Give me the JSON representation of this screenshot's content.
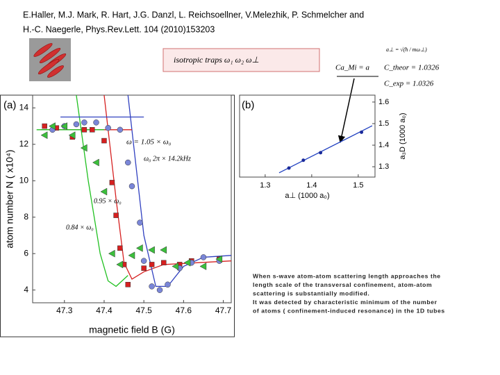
{
  "header": {
    "lines": [
      "E.Haller, M.J. Mark, R. Hart, J.G. Danzl, L. Reichsoellner, V.Melezhik, P. Schmelcher and",
      "H.-C. Naegerle, Phys.Rev.Lett. 104 (2010)153203"
    ]
  },
  "formulas": {
    "traps": "isotropic traps ω₁    ω₂    ω⊥",
    "a_perp": "a⊥ = √(ħ / mω⊥)",
    "ca": "Ca_Mi = a",
    "c_theor": "C_theor = 1.0326",
    "c_exp": "C_exp = 1.0326"
  },
  "chart_data": [
    {
      "type": "scatter",
      "panel_label": "(a)",
      "xlabel": "magnetic field B (G)",
      "ylabel": "atom number N ( x10⁴)",
      "xlim": [
        47.22,
        47.72
      ],
      "ylim": [
        3.3,
        14.7
      ],
      "xticks": [
        47.3,
        47.4,
        47.5,
        47.6,
        47.7
      ],
      "yticks": [
        4,
        6,
        8,
        10,
        12,
        14
      ],
      "annotations": [
        "ω  = 1.05 × ω₀",
        "ω₀    2π × 14.2kHz",
        "0.95 × ω₀",
        "0.84 × ω₀"
      ],
      "series": [
        {
          "color": "#d62020",
          "marker": "square",
          "x": [
            47.25,
            47.28,
            47.32,
            47.35,
            47.37,
            47.4,
            47.42,
            47.43,
            47.44,
            47.45,
            47.46,
            47.5,
            47.52,
            47.55,
            47.59,
            47.62,
            47.69
          ],
          "values": [
            13.0,
            12.9,
            12.4,
            12.8,
            12.8,
            12.2,
            9.9,
            8.1,
            6.3,
            5.4,
            4.3,
            5.2,
            5.4,
            5.5,
            5.4,
            5.6,
            5.7
          ]
        },
        {
          "color": "#7a86d8",
          "marker": "circle",
          "x": [
            47.27,
            47.3,
            47.33,
            47.35,
            47.38,
            47.41,
            47.44,
            47.46,
            47.47,
            47.49,
            47.5,
            47.52,
            47.54,
            47.56,
            47.59,
            47.62,
            47.65,
            47.69
          ],
          "values": [
            12.8,
            13.0,
            13.1,
            13.2,
            13.2,
            12.9,
            12.8,
            11.0,
            9.7,
            7.7,
            5.6,
            4.2,
            4.0,
            4.3,
            5.2,
            5.5,
            5.8,
            5.6
          ]
        },
        {
          "color": "#3cbf3c",
          "marker": "triangle",
          "x": [
            47.25,
            47.27,
            47.3,
            47.32,
            47.35,
            47.38,
            47.4,
            47.42,
            47.44,
            47.47,
            47.49,
            47.52,
            47.55,
            47.58,
            47.61,
            47.65,
            47.69
          ],
          "values": [
            12.5,
            13.0,
            13.0,
            12.5,
            11.8,
            11.0,
            9.4,
            6.0,
            5.4,
            5.9,
            6.3,
            6.2,
            6.2,
            5.3,
            5.5,
            5.3,
            5.7
          ]
        }
      ],
      "fits": [
        {
          "color": "#d62020",
          "x": [
            47.4,
            47.43,
            47.45,
            47.47,
            47.5,
            47.55,
            47.72
          ],
          "values": [
            14.7,
            9.0,
            5.5,
            4.6,
            5.0,
            5.4,
            5.6
          ]
        },
        {
          "color": "#3040c0",
          "x": [
            47.46,
            47.5,
            47.53,
            47.56,
            47.6,
            47.65,
            47.72
          ],
          "values": [
            14.7,
            7.0,
            4.2,
            4.2,
            5.3,
            5.8,
            5.9
          ]
        },
        {
          "color": "#20c020",
          "x": [
            47.33,
            47.36,
            47.39,
            47.41,
            47.43,
            47.46
          ],
          "values": [
            14.7,
            10.0,
            6.0,
            4.5,
            4.2,
            4.8
          ]
        },
        {
          "color": "#3040c0",
          "x": [
            47.29,
            47.5
          ],
          "values": [
            13.5,
            13.5
          ]
        },
        {
          "color": "#d62020",
          "x": [
            47.24,
            47.47
          ],
          "values": [
            12.8,
            12.8
          ]
        },
        {
          "color": "#20c020",
          "x": [
            47.23,
            47.4
          ],
          "values": [
            12.8,
            12.8
          ]
        }
      ]
    },
    {
      "type": "scatter",
      "panel_label": "(b)",
      "xlabel": "a⊥ (1000 a₀)",
      "ylabel": "a₃D (1000 a₀)",
      "xlim": [
        1.245,
        1.536
      ],
      "ylim": [
        1.252,
        1.632
      ],
      "xticks": [
        1.3,
        1.4,
        1.5
      ],
      "yticks": [
        1.3,
        1.4,
        1.5,
        1.6
      ],
      "series": [
        {
          "color": "#1a2a9a",
          "marker": "dot",
          "x": [
            1.351,
            1.382,
            1.419,
            1.507
          ],
          "values": [
            1.294,
            1.33,
            1.365,
            1.46
          ]
        }
      ],
      "fits": [
        {
          "color": "#2040c0",
          "x": [
            1.33,
            1.53
          ],
          "values": [
            1.272,
            1.49
          ]
        }
      ]
    }
  ],
  "caption": {
    "lines": [
      "When s-wave atom-atom scattering length approaches the",
      "length scale of the transversal confinement, atom-atom",
      "scattering is substantially modified.",
      "It was detected by characteristic minimum of the number",
      "of atoms ( confinement-induced resonance) in the 1D tubes"
    ]
  }
}
